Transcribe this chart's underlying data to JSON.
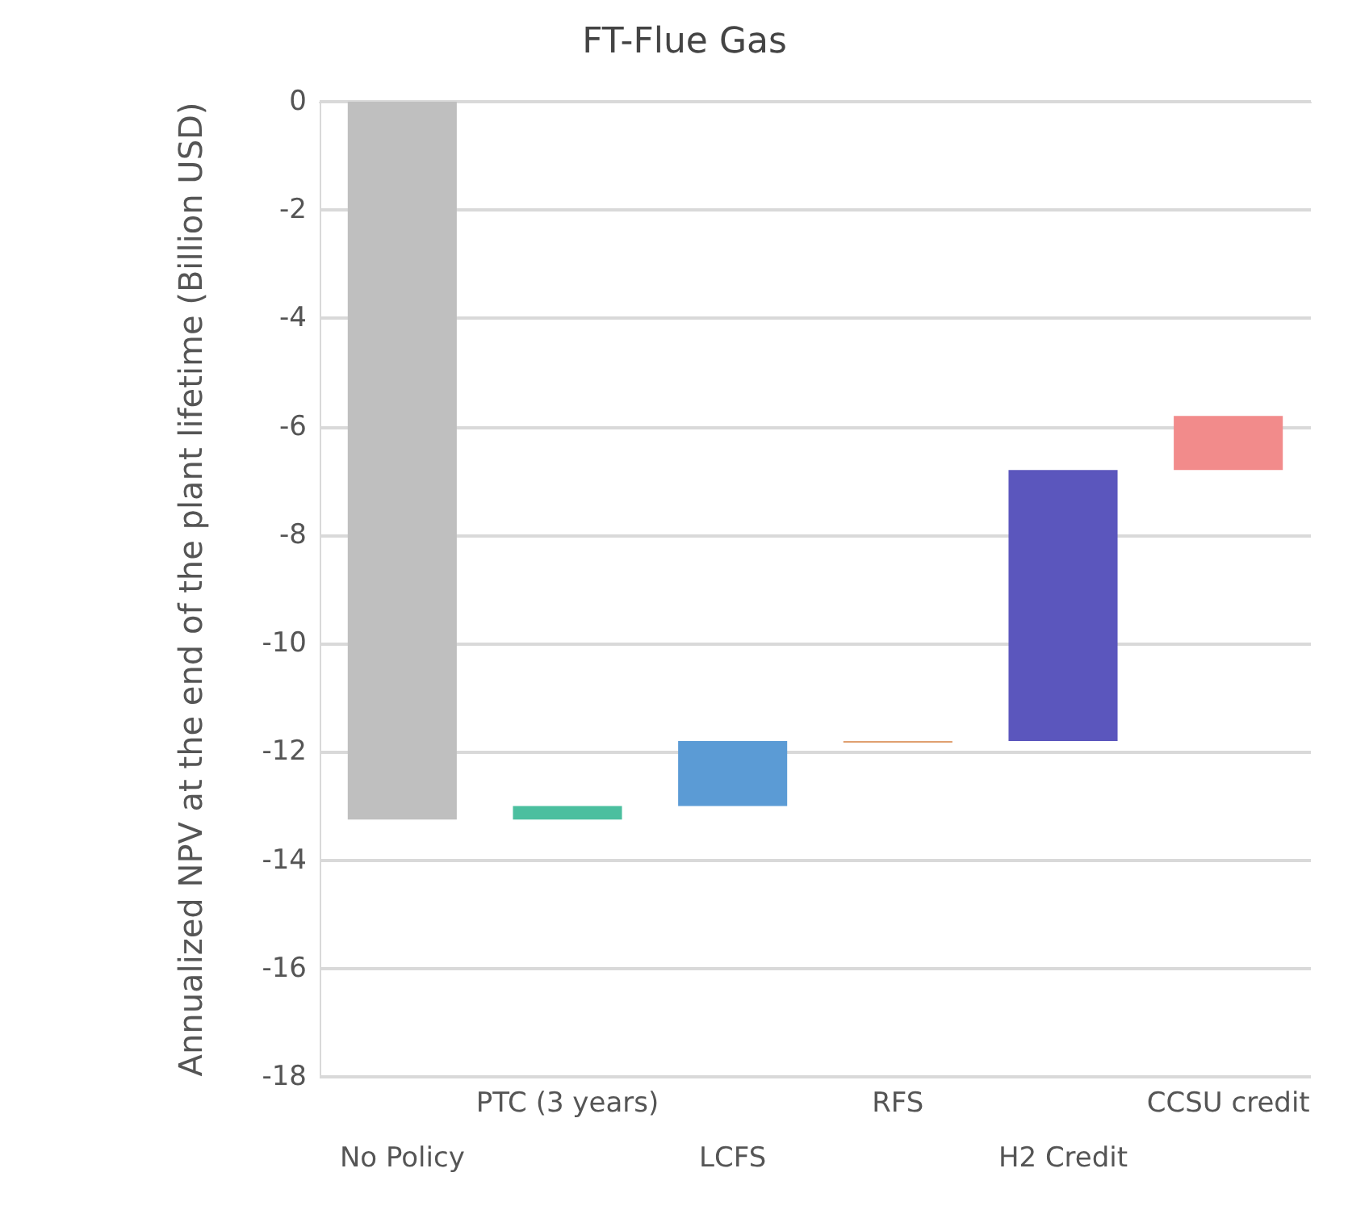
{
  "chart_data": {
    "type": "bar",
    "title": "FT-Flue Gas",
    "ylabel": "Annualized NPV at the end of the plant lifetime (Billion USD)",
    "categories": [
      "No Policy",
      "PTC (3 years)",
      "LCFS",
      "RFS",
      "H2 Credit",
      "CCSU credit"
    ],
    "values": [
      -13.25,
      0.25,
      1.2,
      0.02,
      5.0,
      1.0
    ],
    "base": [
      0,
      -13.25,
      -13.0,
      -11.82,
      -11.8,
      -6.8
    ],
    "colors": [
      "#bfbfbf",
      "#4bbf9f",
      "#5b9bd5",
      "#e0a070",
      "#5b56bd",
      "#f28b8b"
    ],
    "ylim": [
      -18,
      0
    ],
    "yticks": [
      0,
      -2,
      -4,
      -6,
      -8,
      -10,
      -12,
      -14,
      -16,
      -18
    ],
    "grid": "y"
  }
}
